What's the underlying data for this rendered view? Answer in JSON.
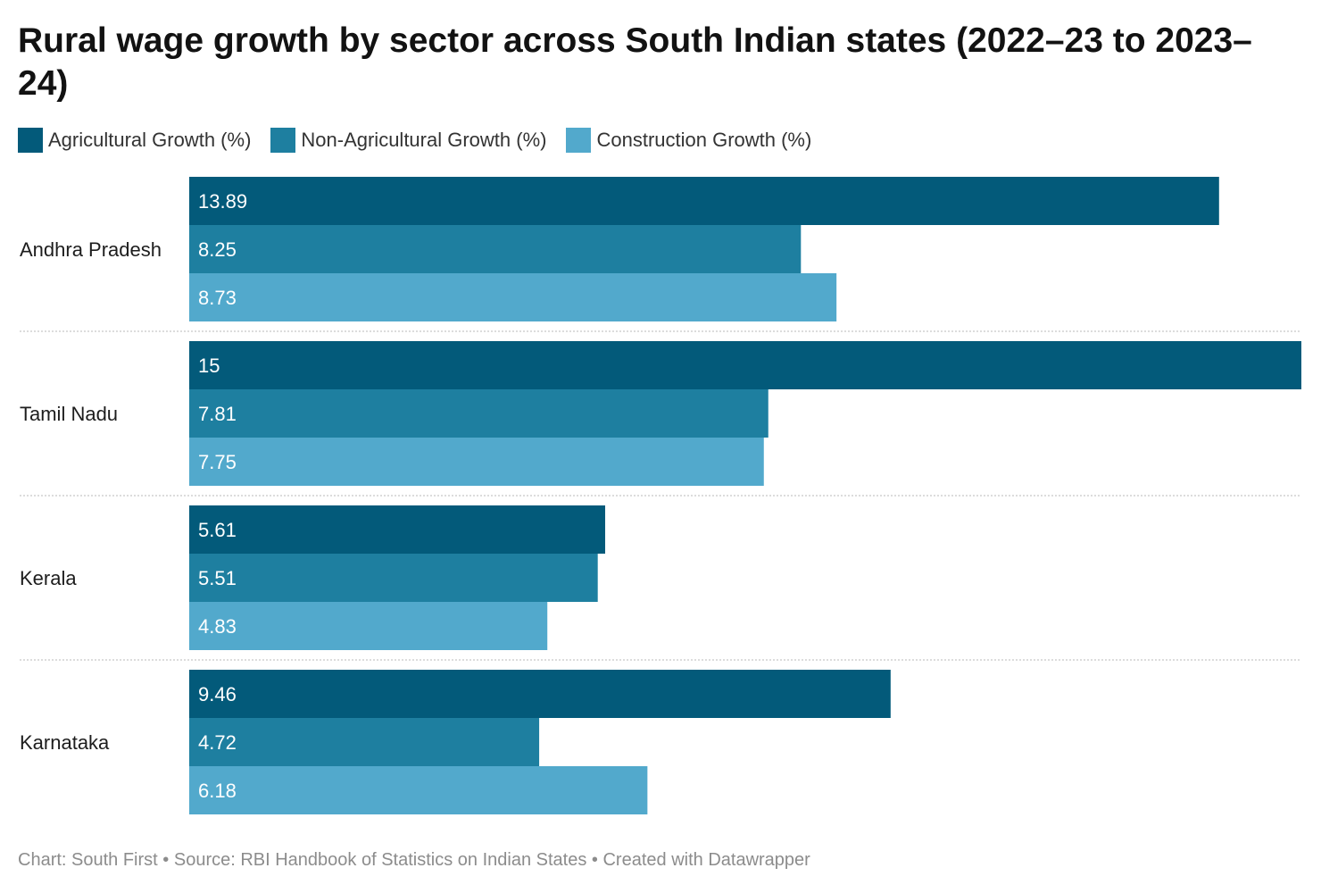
{
  "title": "Rural wage growth by sector across South Indian states (2022–23 to 2023–24)",
  "legend": [
    {
      "label": "Agricultural Growth (%)",
      "color": "#035a7a"
    },
    {
      "label": "Non-Agricultural Growth (%)",
      "color": "#1e7fa0"
    },
    {
      "label": "Construction Growth (%)",
      "color": "#52a9cc"
    }
  ],
  "footer": {
    "credit": "Chart: South First",
    "source": "Source: RBI Handbook of Statistics on Indian States",
    "tool": "Created with Datawrapper",
    "separator": "•"
  },
  "chart_data": {
    "type": "bar",
    "orientation": "horizontal",
    "grouped": true,
    "categories": [
      "Andhra Pradesh",
      "Tamil Nadu",
      "Kerala",
      "Karnataka"
    ],
    "series": [
      {
        "name": "Agricultural Growth (%)",
        "color": "#035a7a",
        "values": [
          13.89,
          15,
          5.61,
          9.46
        ],
        "labels": [
          "13.89",
          "15",
          "5.61",
          "9.46"
        ]
      },
      {
        "name": "Non-Agricultural Growth (%)",
        "color": "#1e7fa0",
        "values": [
          8.25,
          7.81,
          5.51,
          4.72
        ],
        "labels": [
          "8.25",
          "7.81",
          "5.51",
          "4.72"
        ]
      },
      {
        "name": "Construction Growth (%)",
        "color": "#52a9cc",
        "values": [
          8.73,
          7.75,
          4.83,
          6.18
        ],
        "labels": [
          "8.73",
          "7.75",
          "4.83",
          "6.18"
        ]
      }
    ],
    "xlim": [
      0,
      15
    ],
    "data_labels": "inside-left",
    "legend_position": "top-left",
    "grid": false,
    "group_separators": "dotted"
  }
}
